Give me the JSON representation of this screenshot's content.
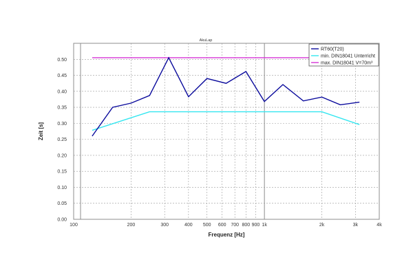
{
  "chart_data": {
    "type": "line",
    "title": "AkuLap",
    "xlabel": "Frequenz [Hz]",
    "ylabel": "Zeit [s]",
    "x_scale": "log",
    "xlim": [
      100,
      4000
    ],
    "ylim": [
      0,
      0.55
    ],
    "grid": true,
    "legend_position": "top-right",
    "x_ticks": [
      {
        "value": 100,
        "label": "100"
      },
      {
        "value": 200,
        "label": "200"
      },
      {
        "value": 300,
        "label": "300"
      },
      {
        "value": 400,
        "label": "400"
      },
      {
        "value": 500,
        "label": "500"
      },
      {
        "value": 600,
        "label": "600"
      },
      {
        "value": 700,
        "label": "700"
      },
      {
        "value": 800,
        "label": "800"
      },
      {
        "value": 900,
        "label": "900"
      },
      {
        "value": 1000,
        "label": "1k"
      },
      {
        "value": 2000,
        "label": "2k"
      },
      {
        "value": 3000,
        "label": "3k"
      },
      {
        "value": 4000,
        "label": "4k"
      }
    ],
    "y_ticks": [
      {
        "value": 0.0,
        "label": "0.00"
      },
      {
        "value": 0.05,
        "label": "0.05"
      },
      {
        "value": 0.1,
        "label": "0.10"
      },
      {
        "value": 0.15,
        "label": "0.15"
      },
      {
        "value": 0.2,
        "label": "0.20"
      },
      {
        "value": 0.25,
        "label": "0.25"
      },
      {
        "value": 0.3,
        "label": "0.30"
      },
      {
        "value": 0.35,
        "label": "0.35"
      },
      {
        "value": 0.4,
        "label": "0.40"
      },
      {
        "value": 0.45,
        "label": "0.45"
      },
      {
        "value": 0.5,
        "label": "0.50"
      }
    ],
    "series": [
      {
        "name": "RT60(T20)",
        "color": "#0a0a9c",
        "x": [
          125,
          160,
          200,
          250,
          315,
          400,
          500,
          630,
          800,
          1000,
          1250,
          1600,
          2000,
          2500,
          3150
        ],
        "y": [
          0.26,
          0.35,
          0.363,
          0.387,
          0.505,
          0.383,
          0.44,
          0.425,
          0.462,
          0.368,
          0.421,
          0.37,
          0.382,
          0.358,
          0.366
        ]
      },
      {
        "name": "min. DIN18041 Unterricht",
        "color": "#33e6f0",
        "x": [
          125,
          250,
          2000,
          3150
        ],
        "y": [
          0.278,
          0.336,
          0.336,
          0.296
        ]
      },
      {
        "name": "max. DIN18041 V=70m³",
        "color": "#d633d6",
        "x": [
          125,
          3150
        ],
        "y": [
          0.505,
          0.505
        ]
      }
    ]
  }
}
